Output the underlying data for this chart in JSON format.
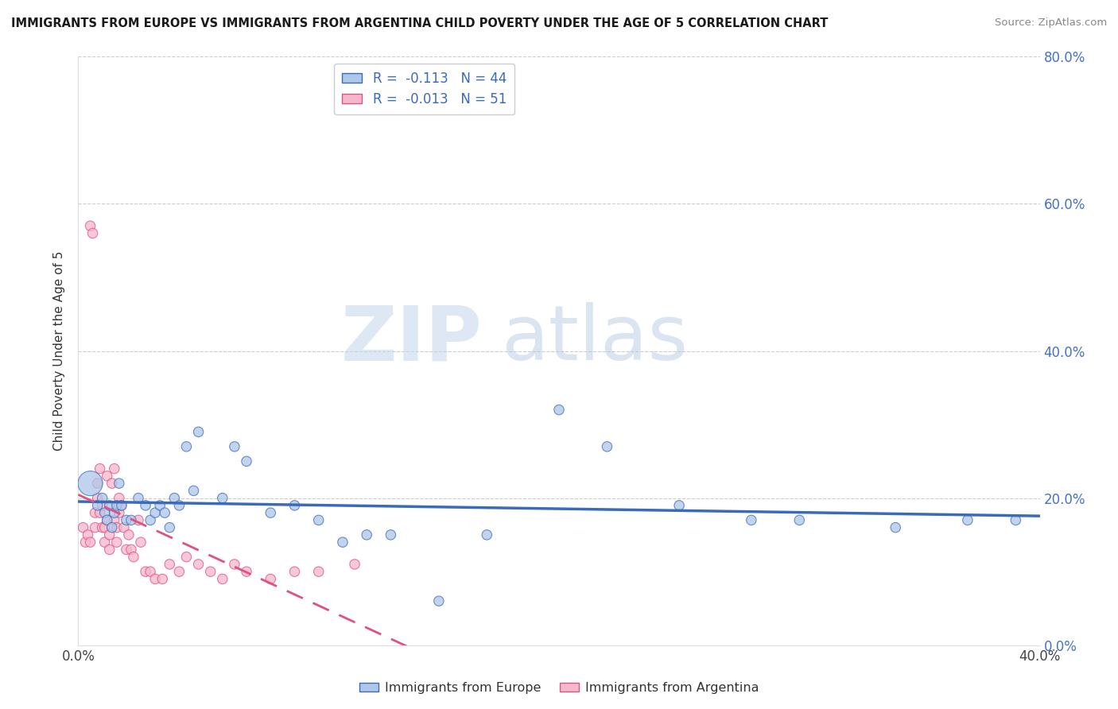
{
  "title": "IMMIGRANTS FROM EUROPE VS IMMIGRANTS FROM ARGENTINA CHILD POVERTY UNDER THE AGE OF 5 CORRELATION CHART",
  "source": "Source: ZipAtlas.com",
  "ylabel": "Child Poverty Under the Age of 5",
  "legend_label_europe": "Immigrants from Europe",
  "legend_label_argentina": "Immigrants from Argentina",
  "R_europe": -0.113,
  "N_europe": 44,
  "R_argentina": -0.013,
  "N_argentina": 51,
  "xlim": [
    0.0,
    0.4
  ],
  "ylim": [
    0.0,
    0.8
  ],
  "xticks": [
    0.0,
    0.05,
    0.1,
    0.15,
    0.2,
    0.25,
    0.3,
    0.35,
    0.4
  ],
  "yticks": [
    0.0,
    0.2,
    0.4,
    0.6,
    0.8
  ],
  "color_europe": "#aec6e8",
  "color_argentina": "#f5b8cb",
  "line_color_europe": "#3a6bba",
  "line_color_argentina": "#e05080",
  "watermark_zip": "#c8d8ee",
  "watermark_atlas": "#b8cce4",
  "europe_x": [
    0.005,
    0.008,
    0.01,
    0.011,
    0.012,
    0.013,
    0.014,
    0.015,
    0.016,
    0.017,
    0.018,
    0.02,
    0.022,
    0.025,
    0.028,
    0.03,
    0.032,
    0.034,
    0.036,
    0.038,
    0.04,
    0.042,
    0.045,
    0.048,
    0.05,
    0.06,
    0.065,
    0.07,
    0.08,
    0.09,
    0.1,
    0.11,
    0.12,
    0.13,
    0.15,
    0.17,
    0.2,
    0.22,
    0.25,
    0.28,
    0.3,
    0.34,
    0.37,
    0.39
  ],
  "europe_y": [
    0.22,
    0.19,
    0.2,
    0.18,
    0.17,
    0.19,
    0.16,
    0.18,
    0.19,
    0.22,
    0.19,
    0.17,
    0.17,
    0.2,
    0.19,
    0.17,
    0.18,
    0.19,
    0.18,
    0.16,
    0.2,
    0.19,
    0.27,
    0.21,
    0.29,
    0.2,
    0.27,
    0.25,
    0.18,
    0.19,
    0.17,
    0.14,
    0.15,
    0.15,
    0.06,
    0.15,
    0.32,
    0.27,
    0.19,
    0.17,
    0.17,
    0.16,
    0.17,
    0.17
  ],
  "europe_size": [
    500,
    80,
    80,
    80,
    80,
    80,
    80,
    80,
    80,
    80,
    80,
    80,
    80,
    80,
    80,
    80,
    80,
    80,
    80,
    80,
    80,
    80,
    80,
    80,
    80,
    80,
    80,
    80,
    80,
    80,
    80,
    80,
    80,
    80,
    80,
    80,
    80,
    80,
    80,
    80,
    80,
    80,
    80,
    80
  ],
  "argentina_x": [
    0.002,
    0.003,
    0.004,
    0.005,
    0.005,
    0.006,
    0.007,
    0.007,
    0.008,
    0.008,
    0.009,
    0.009,
    0.01,
    0.01,
    0.011,
    0.011,
    0.012,
    0.012,
    0.013,
    0.013,
    0.014,
    0.015,
    0.015,
    0.016,
    0.016,
    0.017,
    0.017,
    0.018,
    0.019,
    0.02,
    0.021,
    0.022,
    0.023,
    0.025,
    0.026,
    0.028,
    0.03,
    0.032,
    0.035,
    0.038,
    0.042,
    0.045,
    0.05,
    0.055,
    0.06,
    0.065,
    0.07,
    0.08,
    0.09,
    0.1,
    0.115
  ],
  "argentina_y": [
    0.16,
    0.14,
    0.15,
    0.57,
    0.14,
    0.56,
    0.18,
    0.16,
    0.22,
    0.2,
    0.24,
    0.18,
    0.19,
    0.16,
    0.16,
    0.14,
    0.23,
    0.17,
    0.15,
    0.13,
    0.22,
    0.24,
    0.17,
    0.16,
    0.14,
    0.2,
    0.18,
    0.19,
    0.16,
    0.13,
    0.15,
    0.13,
    0.12,
    0.17,
    0.14,
    0.1,
    0.1,
    0.09,
    0.09,
    0.11,
    0.1,
    0.12,
    0.11,
    0.1,
    0.09,
    0.11,
    0.1,
    0.09,
    0.1,
    0.1,
    0.11
  ],
  "argentina_size": [
    80,
    80,
    80,
    80,
    80,
    80,
    80,
    80,
    80,
    80,
    80,
    80,
    80,
    80,
    80,
    80,
    80,
    80,
    80,
    80,
    80,
    80,
    80,
    80,
    80,
    80,
    80,
    80,
    80,
    80,
    80,
    80,
    80,
    80,
    80,
    80,
    80,
    80,
    80,
    80,
    80,
    80,
    80,
    80,
    80,
    80,
    80,
    80,
    80,
    80,
    80
  ]
}
